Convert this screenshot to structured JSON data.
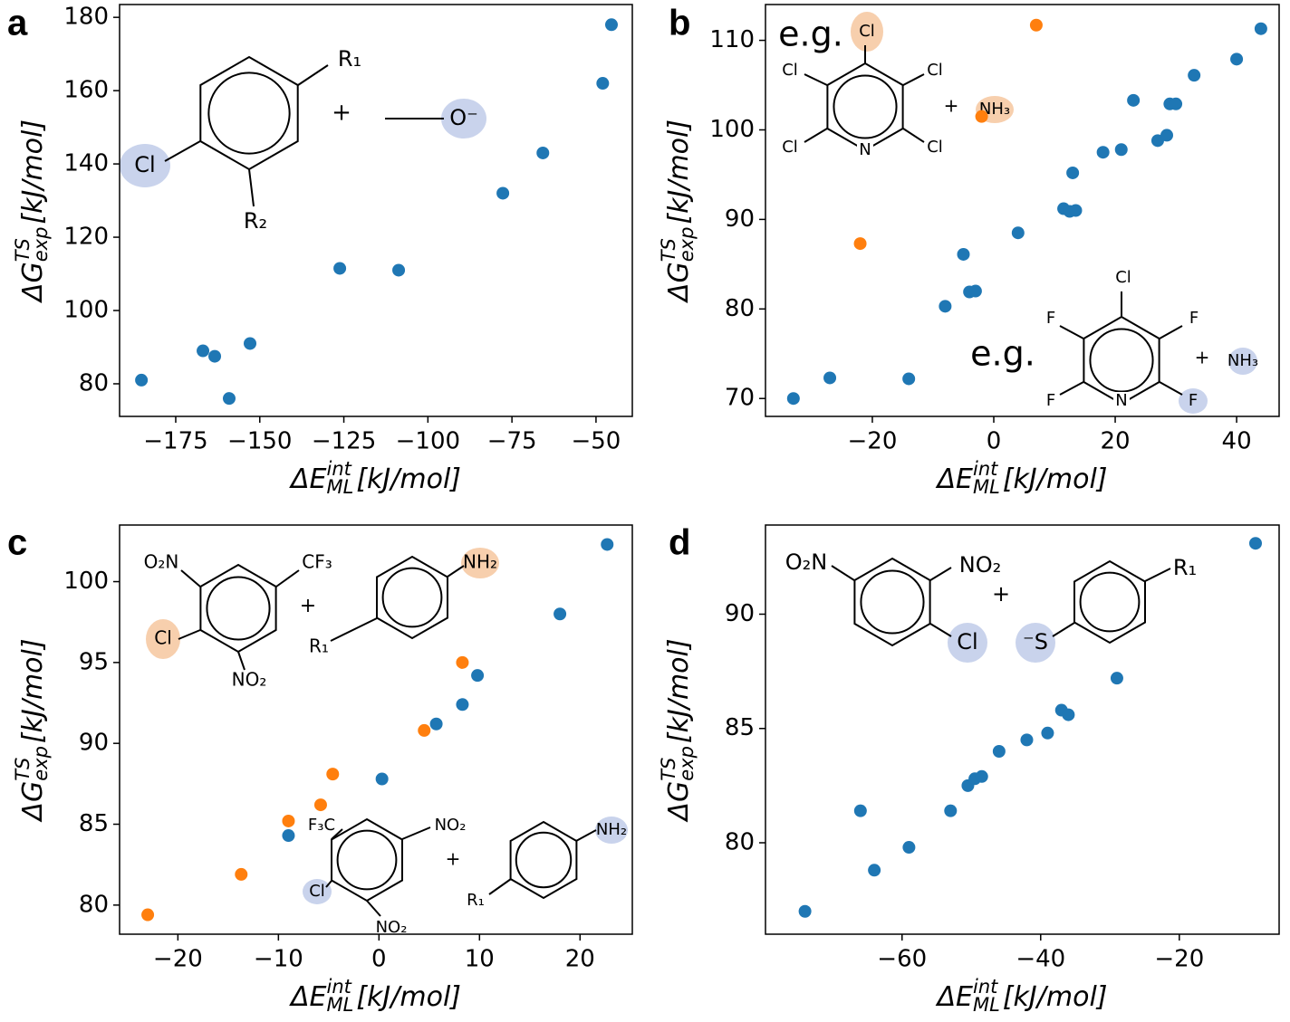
{
  "chart_data": [
    {
      "type": "scatter",
      "panel": "a",
      "xlabel": {
        "symbol": "ΔE",
        "sub": "ML",
        "sup": "int",
        "unit": "[kJ/mol]"
      },
      "ylabel": {
        "symbol": "ΔG",
        "sub": "exp",
        "sup": "TS",
        "unit": "[kJ/mol]"
      },
      "xlim": [
        -191.7,
        -39.2
      ],
      "ylim": [
        71.1,
        183.5
      ],
      "xticks": [
        {
          "value": -175,
          "label": "−175"
        },
        {
          "value": -150,
          "label": "−150"
        },
        {
          "value": -125,
          "label": "−125"
        },
        {
          "value": -100,
          "label": "−100"
        },
        {
          "value": -75,
          "label": "−75"
        },
        {
          "value": -50,
          "label": "−50"
        }
      ],
      "yticks": [
        80,
        100,
        120,
        140,
        160,
        180
      ],
      "series": [
        {
          "color": "#1f77b4",
          "x": [
            -185.2,
            -166.9,
            -163.4,
            -159.1,
            -152.9,
            -126.2,
            -108.7,
            -77.7,
            -65.8,
            -48,
            -45.4
          ],
          "y": [
            81,
            89,
            87.5,
            76,
            91,
            111.5,
            111,
            132,
            143,
            162,
            178
          ]
        }
      ],
      "annotations": [
        "Cl",
        "R₁",
        "R₂",
        "+",
        "O⁻"
      ]
    },
    {
      "type": "scatter",
      "panel": "b",
      "xlabel": {
        "symbol": "ΔE",
        "sub": "ML",
        "sup": "int",
        "unit": "[kJ/mol]"
      },
      "ylabel": {
        "symbol": "ΔG",
        "sub": "exp",
        "sup": "TS",
        "unit": "[kJ/mol]"
      },
      "xlim": [
        -37.6,
        47
      ],
      "ylim": [
        68,
        114
      ],
      "xticks": [
        {
          "value": -20,
          "label": "−20"
        },
        0,
        20,
        40
      ],
      "yticks": [
        70,
        80,
        90,
        100,
        110
      ],
      "series": [
        {
          "color": "#1f77b4",
          "x": [
            -33,
            -27,
            -14,
            -8,
            -4,
            -3,
            -5,
            4,
            11.5,
            12.5,
            13.5,
            13,
            18,
            21,
            23,
            27,
            28.5,
            29,
            30,
            33,
            40,
            44
          ],
          "y": [
            70,
            72.3,
            72.2,
            80.3,
            81.9,
            82,
            86.1,
            88.5,
            91.2,
            90.9,
            91,
            95.2,
            97.5,
            97.8,
            103.3,
            98.8,
            99.4,
            102.9,
            102.9,
            106.1,
            107.9,
            111.3
          ]
        },
        {
          "color": "#ff7f0e",
          "x": [
            -22,
            -2,
            7
          ],
          "y": [
            87.3,
            101.5,
            111.7
          ]
        }
      ],
      "annotations": [
        "e.g.",
        "Cl",
        "Cl",
        "Cl",
        "Cl",
        "Cl",
        "N",
        "+",
        "NH₃",
        "e.g.",
        "Cl",
        "F",
        "F",
        "F",
        "F",
        "N",
        "+",
        "NH₃"
      ]
    },
    {
      "type": "scatter",
      "panel": "c",
      "xlabel": {
        "symbol": "ΔE",
        "sub": "ML",
        "sup": "int",
        "unit": "[kJ/mol]"
      },
      "ylabel": {
        "symbol": "ΔG",
        "sub": "exp",
        "sup": "TS",
        "unit": "[kJ/mol]"
      },
      "xlim": [
        -25.8,
        25.2
      ],
      "ylim": [
        78.2,
        103.5
      ],
      "xticks": [
        {
          "value": -20,
          "label": "−20"
        },
        {
          "value": -10,
          "label": "−10"
        },
        0,
        10,
        20
      ],
      "yticks": [
        80,
        85,
        90,
        95,
        100
      ],
      "series": [
        {
          "color": "#1f77b4",
          "x": [
            -9,
            0.3,
            5.7,
            8.3,
            9.8,
            18,
            22.7
          ],
          "y": [
            84.3,
            87.8,
            91.2,
            92.4,
            94.2,
            98,
            102.3
          ]
        },
        {
          "color": "#ff7f0e",
          "x": [
            -23,
            -13.7,
            -9,
            -5.8,
            -4.6,
            4.5,
            8.3
          ],
          "y": [
            79.4,
            81.9,
            85.2,
            86.2,
            88.1,
            90.8,
            95
          ]
        }
      ],
      "annotations": [
        "O₂N",
        "CF₃",
        "Cl",
        "NO₂",
        "+",
        "NH₂",
        "R₁",
        "F₃C",
        "NO₂",
        "Cl",
        "NO₂",
        "+",
        "NH₂",
        "R₁"
      ]
    },
    {
      "type": "scatter",
      "panel": "d",
      "xlabel": {
        "symbol": "ΔE",
        "sub": "ML",
        "sup": "int",
        "unit": "[kJ/mol]"
      },
      "ylabel": {
        "symbol": "ΔG",
        "sub": "exp",
        "sup": "TS",
        "unit": "[kJ/mol]"
      },
      "xlim": [
        -79.7,
        -5.6
      ],
      "ylim": [
        76,
        93.9
      ],
      "xticks": [
        {
          "value": -60,
          "label": "−60"
        },
        {
          "value": -40,
          "label": "−40"
        },
        {
          "value": -20,
          "label": "−20"
        }
      ],
      "yticks": [
        80,
        85,
        90
      ],
      "series": [
        {
          "color": "#1f77b4",
          "x": [
            -74,
            -66,
            -64,
            -59,
            -53,
            -50.5,
            -49.5,
            -48.5,
            -46,
            -42,
            -39,
            -37,
            -36,
            -29,
            -9
          ],
          "y": [
            77,
            81.4,
            78.8,
            79.8,
            81.4,
            82.5,
            82.8,
            82.9,
            84,
            84.5,
            84.8,
            85.8,
            85.6,
            87.2,
            93.1
          ]
        }
      ],
      "annotations": [
        "O₂N",
        "NO₂",
        "Cl",
        "+",
        "⁻S",
        "R₁"
      ]
    }
  ]
}
